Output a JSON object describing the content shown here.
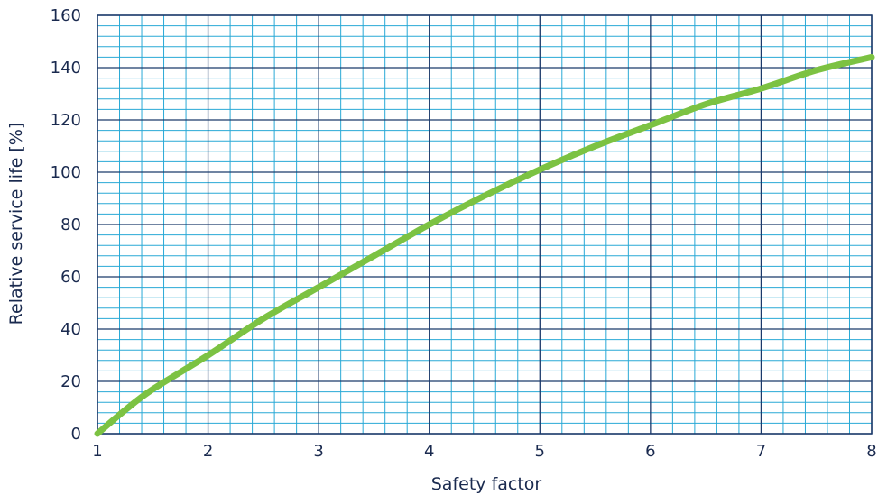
{
  "chart_data": {
    "type": "line",
    "title": "",
    "xlabel": "Safety factor",
    "ylabel": "Relative service life [%]",
    "xlim": [
      1,
      8
    ],
    "ylim": [
      0,
      160
    ],
    "x_ticks": [
      "1",
      "2",
      "3",
      "4",
      "5",
      "6",
      "7",
      "8"
    ],
    "y_ticks": [
      "0",
      "20",
      "40",
      "60",
      "80",
      "100",
      "120",
      "140",
      "160"
    ],
    "grid": "on (major and minor)",
    "colors": {
      "series": "#7cc242",
      "major_grid": "#1b3a6b",
      "minor_grid": "#29a9d6",
      "text": "#1a2a4f"
    },
    "series": [
      {
        "x": [
          1,
          1.25,
          1.5,
          2,
          2.5,
          3,
          3.5,
          4,
          4.5,
          5,
          5.5,
          6,
          6.5,
          7,
          7.5,
          8
        ],
        "y": [
          0,
          9,
          17,
          30,
          44,
          56,
          68,
          80,
          91,
          101,
          110,
          118,
          126,
          132,
          139,
          144
        ]
      }
    ]
  }
}
